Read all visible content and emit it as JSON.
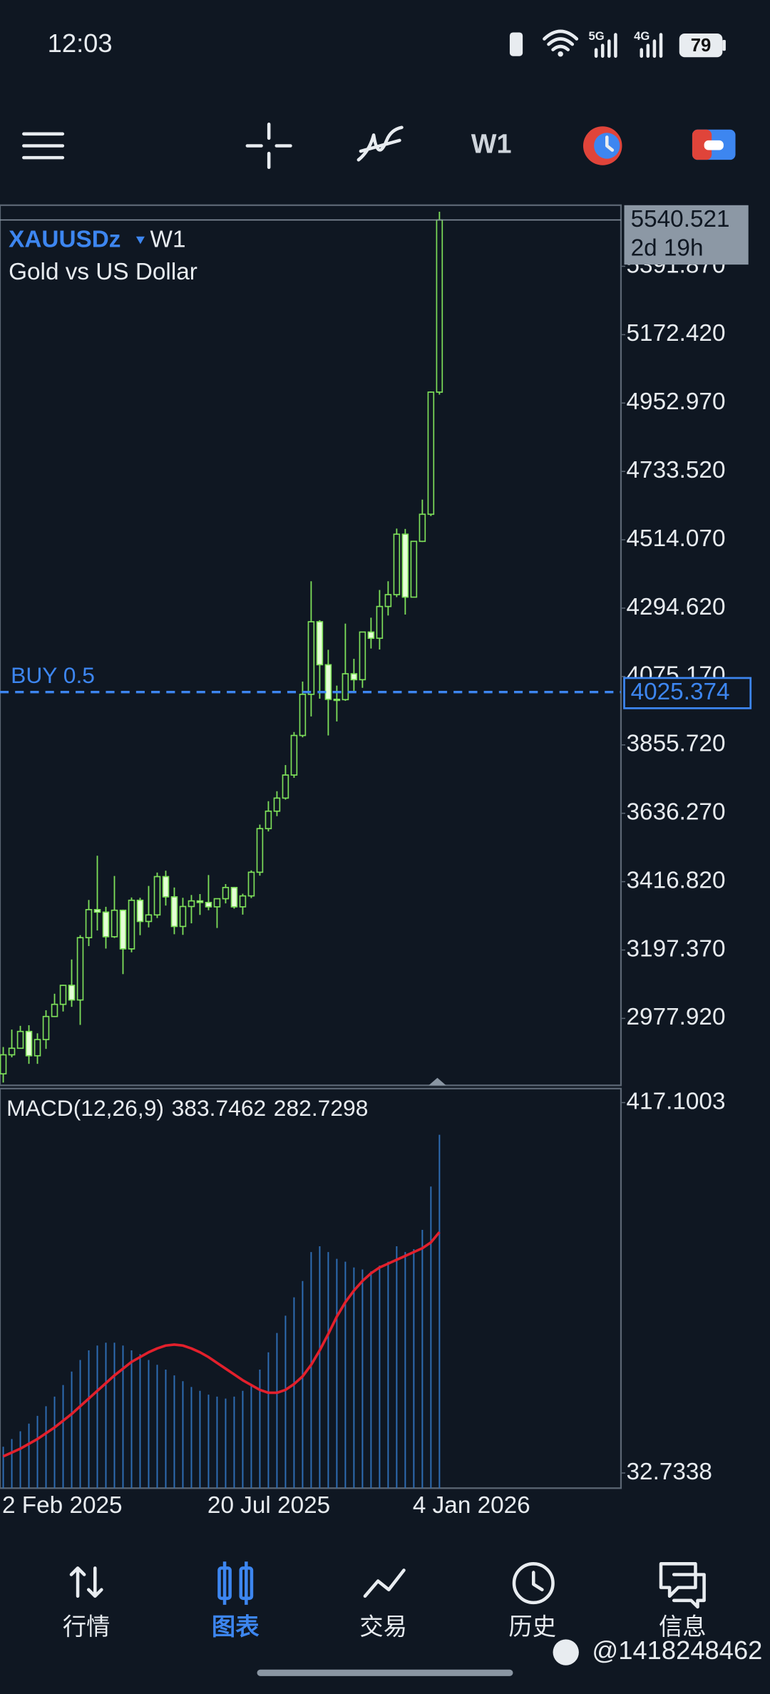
{
  "status_bar": {
    "time": "12:03",
    "battery": "79"
  },
  "toolbar": {
    "timeframe": "W1"
  },
  "chart_data": [
    {
      "type": "candlestick",
      "symbol": "XAUUSDz",
      "timeframe": "W1",
      "subtitle": "Gold vs US Dollar",
      "categories": [
        "2 Feb 2025",
        null,
        null,
        null,
        null,
        null,
        null,
        null,
        null,
        null,
        null,
        null,
        null,
        null,
        null,
        null,
        null,
        null,
        null,
        null,
        null,
        null,
        null,
        null,
        "20 Jul 2025",
        null,
        null,
        null,
        null,
        null,
        null,
        null,
        null,
        null,
        null,
        null,
        null,
        null,
        null,
        null,
        null,
        null,
        null,
        null,
        null,
        null,
        null,
        null,
        "4 Jan 2026",
        null,
        null,
        null
      ],
      "open": [
        2800,
        2861,
        2882,
        2936,
        2858,
        2910,
        2984,
        3023,
        3084,
        3037,
        3237,
        3327,
        3319,
        3240,
        3325,
        3201,
        3357,
        3289,
        3310,
        3433,
        3368,
        3273,
        3337,
        3355,
        3350,
        3336,
        3362,
        3398,
        3336,
        3371,
        3447,
        3587,
        3643,
        3685,
        3759,
        3886,
        4018,
        4251,
        4113,
        4002,
        4001,
        4084,
        4065,
        4218,
        4198,
        4300,
        4338,
        4532,
        4330,
        4509,
        4596,
        4988
      ],
      "high": [
        2886,
        2942,
        2954,
        2956,
        2930,
        3004,
        3057,
        3086,
        3167,
        3245,
        3358,
        3500,
        3336,
        3435,
        3327,
        3366,
        3365,
        3403,
        3446,
        3452,
        3398,
        3365,
        3374,
        3377,
        3438,
        3363,
        3409,
        3400,
        3378,
        3453,
        3600,
        3675,
        3707,
        3791,
        3897,
        4059,
        4381,
        4256,
        4161,
        4046,
        4245,
        4132,
        4219,
        4264,
        4353,
        4381,
        4550,
        4549,
        4500,
        4643,
        4990,
        5567
      ],
      "low": [
        2772,
        2853,
        2882,
        2832,
        2832,
        2880,
        2982,
        3000,
        3015,
        2957,
        3210,
        3260,
        3202,
        3236,
        3120,
        3190,
        3245,
        3270,
        3300,
        3340,
        3248,
        3246,
        3283,
        3310,
        3325,
        3268,
        3347,
        3330,
        3311,
        3364,
        3436,
        3578,
        3627,
        3680,
        3750,
        3880,
        3947,
        4004,
        3886,
        3931,
        3997,
        4022,
        4039,
        4165,
        4162,
        4271,
        4330,
        4274,
        4329,
        4507,
        4590,
        4980
      ],
      "close": [
        2861,
        2882,
        2936,
        2858,
        2910,
        2984,
        3023,
        3084,
        3037,
        3237,
        3327,
        3319,
        3240,
        3325,
        3201,
        3357,
        3289,
        3310,
        3433,
        3368,
        3273,
        3337,
        3355,
        3350,
        3336,
        3362,
        3398,
        3336,
        3371,
        3447,
        3587,
        3643,
        3685,
        3759,
        3886,
        4018,
        4251,
        4113,
        4002,
        4001,
        4084,
        4065,
        4218,
        4198,
        4300,
        4338,
        4532,
        4330,
        4509,
        4596,
        4988,
        5540.521
      ],
      "up_color": "#7ee05a",
      "down_color": "#e6ffd8",
      "ylim": [
        2763,
        5588
      ],
      "yticks": [
        {
          "value": 5391.87,
          "label": "5391.870"
        },
        {
          "value": 5172.42,
          "label": "5172.420"
        },
        {
          "value": 4952.97,
          "label": "4952.970"
        },
        {
          "value": 4733.52,
          "label": "4733.520"
        },
        {
          "value": 4514.07,
          "label": "4514.070"
        },
        {
          "value": 4294.62,
          "label": "4294.620"
        },
        {
          "value": 4075.17,
          "label": "4075.170"
        },
        {
          "value": 3855.72,
          "label": "3855.720"
        },
        {
          "value": 3636.27,
          "label": "3636.270"
        },
        {
          "value": 3416.82,
          "label": "3416.820"
        },
        {
          "value": 3197.37,
          "label": "3197.370"
        },
        {
          "value": 2977.92,
          "label": "2977.920"
        }
      ],
      "countdown": "2d 19h",
      "order": {
        "label": "BUY 0.5",
        "price": 4025.374,
        "color": "#3d86f0"
      }
    },
    {
      "type": "macd",
      "title": "MACD(12,26,9)",
      "series": [
        {
          "style": "histogram",
          "color": "#2e6db4",
          "values": [
            60,
            68,
            76,
            84,
            92,
            102,
            112,
            124,
            138,
            150,
            160,
            165,
            168,
            168,
            165,
            160,
            156,
            150,
            145,
            140,
            134,
            128,
            122,
            118,
            114,
            112,
            110,
            112,
            118,
            125,
            140,
            158,
            178,
            196,
            215,
            232,
            262,
            268,
            262,
            255,
            252,
            246,
            244,
            242,
            248,
            252,
            268,
            262,
            265,
            285,
            330,
            383.7462
          ]
        },
        {
          "style": "line",
          "color": "#e3202c",
          "values": [
            50,
            54,
            58,
            63,
            68,
            74,
            80,
            87,
            94,
            102,
            110,
            118,
            126,
            134,
            141,
            148,
            153,
            158,
            162,
            165,
            166,
            165,
            162,
            158,
            153,
            147,
            141,
            135,
            129,
            124,
            119,
            116,
            116,
            119,
            125,
            133,
            145,
            160,
            177,
            195,
            210,
            222,
            232,
            240,
            246,
            250,
            254,
            258,
            262,
            266,
            272,
            282.7298
          ]
        }
      ],
      "ylim": [
        17,
        429.4
      ],
      "yticks": [
        417.1003,
        32.7338
      ]
    }
  ],
  "bottom_nav": {
    "items": [
      "行情",
      "图表",
      "交易",
      "历史",
      "信息"
    ],
    "active": 1,
    "active_color": "#3d86f0"
  },
  "watermark": "@1418248462"
}
